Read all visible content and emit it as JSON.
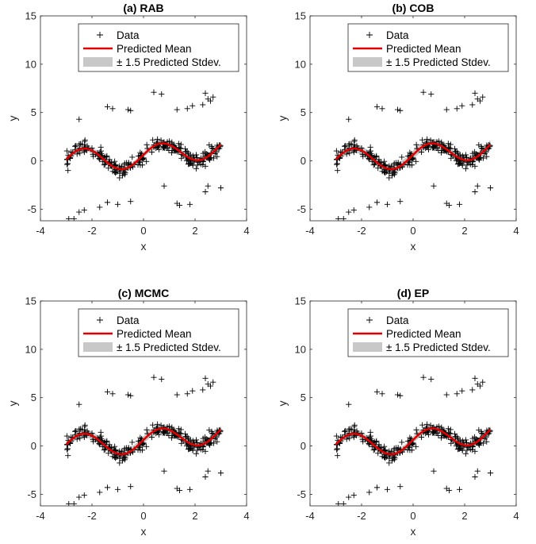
{
  "chart_data": [
    {
      "type": "scatter",
      "title": "(a) RAB",
      "xlabel": "x",
      "ylabel": "y",
      "xlim": [
        -4,
        4
      ],
      "ylim": [
        -6.2,
        15
      ],
      "xticks": [
        -4,
        -2,
        0,
        2,
        4
      ],
      "yticks": [
        -5,
        0,
        5,
        10,
        15
      ],
      "legend": [
        "Data",
        "Predicted Mean",
        "± 1.5 Predicted Stdev."
      ],
      "legend_position": "top-center",
      "series": [
        {
          "name": "Data",
          "kind": "marker-plus",
          "color": "#000000"
        },
        {
          "name": "Predicted Mean",
          "kind": "line",
          "color": "#e00000"
        },
        {
          "name": "± 1.5 Predicted Stdev.",
          "kind": "band",
          "color": "#c8c8c8",
          "half_width": 0.3
        }
      ]
    },
    {
      "type": "scatter",
      "title": "(b) COB",
      "xlabel": "x",
      "ylabel": "y",
      "xlim": [
        -4,
        4
      ],
      "ylim": [
        -6.2,
        15
      ],
      "xticks": [
        -4,
        -2,
        0,
        2,
        4
      ],
      "yticks": [
        -5,
        0,
        5,
        10,
        15
      ],
      "legend": [
        "Data",
        "Predicted Mean",
        "± 1.5 Predicted Stdev."
      ],
      "legend_position": "top-center",
      "series": [
        {
          "name": "Data",
          "kind": "marker-plus",
          "color": "#000000"
        },
        {
          "name": "Predicted Mean",
          "kind": "line",
          "color": "#e00000"
        },
        {
          "name": "± 1.5 Predicted Stdev.",
          "kind": "band",
          "color": "#c8c8c8",
          "half_width": 0.45
        }
      ]
    },
    {
      "type": "scatter",
      "title": "(c) MCMC",
      "xlabel": "x",
      "ylabel": "y",
      "xlim": [
        -4,
        4
      ],
      "ylim": [
        -6.2,
        15
      ],
      "xticks": [
        -4,
        -2,
        0,
        2,
        4
      ],
      "yticks": [
        -5,
        0,
        5,
        10,
        15
      ],
      "legend": [
        "Data",
        "Predicted Mean",
        "± 1.5 Predicted Stdev."
      ],
      "legend_position": "top-center",
      "series": [
        {
          "name": "Data",
          "kind": "marker-plus",
          "color": "#000000"
        },
        {
          "name": "Predicted Mean",
          "kind": "line",
          "color": "#e00000"
        },
        {
          "name": "± 1.5 Predicted Stdev.",
          "kind": "band",
          "color": "#c8c8c8",
          "half_width": 0.4
        }
      ]
    },
    {
      "type": "scatter",
      "title": "(d) EP",
      "xlabel": "x",
      "ylabel": "y",
      "xlim": [
        -4,
        4
      ],
      "ylim": [
        -6.2,
        15
      ],
      "xticks": [
        -4,
        -2,
        0,
        2,
        4
      ],
      "yticks": [
        -5,
        0,
        5,
        10,
        15
      ],
      "legend": [
        "Data",
        "Predicted Mean",
        "± 1.5 Predicted Stdev."
      ],
      "legend_position": "top-center",
      "series": [
        {
          "name": "Data",
          "kind": "marker-plus",
          "color": "#000000"
        },
        {
          "name": "Predicted Mean",
          "kind": "line",
          "color": "#e00000"
        },
        {
          "name": "± 1.5 Predicted Stdev.",
          "kind": "band",
          "color": "#c8c8c8",
          "half_width": 0.35
        }
      ]
    }
  ],
  "data_points": {
    "outliers": [
      [
        -2.5,
        4.3
      ],
      [
        -1.4,
        5.6
      ],
      [
        -1.2,
        5.4
      ],
      [
        -0.6,
        5.3
      ],
      [
        -0.5,
        5.2
      ],
      [
        0.4,
        7.1
      ],
      [
        0.7,
        6.9
      ],
      [
        1.3,
        5.3
      ],
      [
        1.7,
        5.4
      ],
      [
        1.9,
        5.7
      ],
      [
        2.3,
        5.8
      ],
      [
        2.4,
        7.0
      ],
      [
        2.5,
        6.4
      ],
      [
        2.7,
        6.6
      ],
      [
        2.6,
        6.2
      ],
      [
        -2.9,
        -6.0
      ],
      [
        -2.7,
        -6.0
      ],
      [
        -2.5,
        -5.3
      ],
      [
        -2.3,
        -5.1
      ],
      [
        -1.7,
        -4.8
      ],
      [
        -1.4,
        -4.3
      ],
      [
        -1.0,
        -4.5
      ],
      [
        -0.5,
        -4.2
      ],
      [
        0.8,
        -2.6
      ],
      [
        1.3,
        -4.4
      ],
      [
        1.4,
        -4.6
      ],
      [
        1.8,
        -4.5
      ],
      [
        2.4,
        -3.2
      ],
      [
        2.5,
        -2.6
      ],
      [
        3.0,
        -2.8
      ]
    ],
    "inlier_count": 260,
    "x_range": [
      -3.0,
      3.0
    ]
  }
}
